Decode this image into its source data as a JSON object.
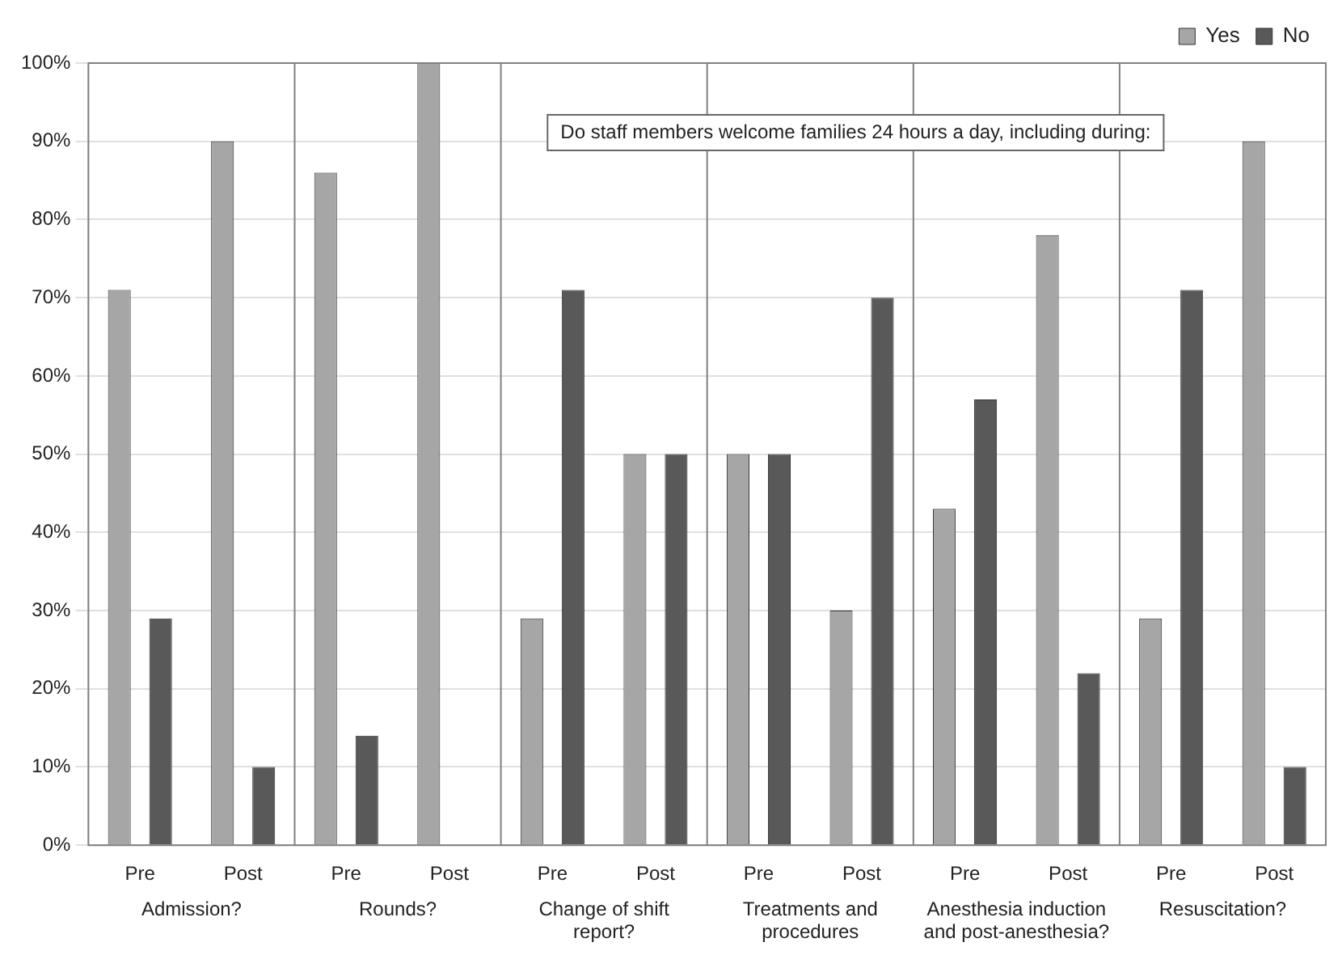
{
  "chart_data": {
    "type": "bar",
    "title": "Do staff members welcome families 24 hours a day, including during:",
    "categories": [
      "Pre",
      "Post",
      "Pre",
      "Post",
      "Pre",
      "Post",
      "Pre",
      "Post",
      "Pre",
      "Post",
      "Pre",
      "Post"
    ],
    "series": [
      {
        "name": "Yes",
        "color": "#a6a6a6",
        "values": [
          71,
          90,
          86,
          100,
          29,
          50,
          50,
          30,
          43,
          78,
          29,
          90
        ]
      },
      {
        "name": "No",
        "color": "#595959",
        "values": [
          29,
          10,
          14,
          0,
          71,
          50,
          50,
          70,
          57,
          22,
          71,
          10
        ]
      }
    ],
    "annotations": [
      "Admission?",
      "Rounds?",
      "Change of shift report?",
      "Treatments and procedures",
      "Anesthesia induction and post-anesthesia?",
      "Resuscitation?"
    ],
    "ylim": [
      0,
      100
    ],
    "yticks": [
      {
        "value": 0,
        "label": "0%"
      },
      {
        "value": 10,
        "label": "10%"
      },
      {
        "value": 20,
        "label": "20%"
      },
      {
        "value": 30,
        "label": "30%"
      },
      {
        "value": 40,
        "label": "40%"
      },
      {
        "value": 50,
        "label": "50%"
      },
      {
        "value": 60,
        "label": "60%"
      },
      {
        "value": 70,
        "label": "70%"
      },
      {
        "value": 80,
        "label": "80%"
      },
      {
        "value": 90,
        "label": "90%"
      },
      {
        "value": 100,
        "label": "100%"
      }
    ],
    "grid": "y",
    "legend": "top right"
  }
}
